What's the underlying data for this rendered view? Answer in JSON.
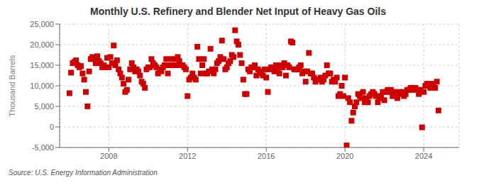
{
  "chart_data": {
    "type": "scatter",
    "title": "Monthly U.S. Refinery and Blender Net Input of Heavy Gas Oils",
    "ylabel": "Thousand Barrels",
    "annotations": [
      "Source: U.S. Energy Information Administration"
    ],
    "color": "#cc0000",
    "marker": "square",
    "grid": true,
    "xlim": [
      2005.5,
      2025.8
    ],
    "xticks": [
      2008,
      2012,
      2016,
      2020,
      2024
    ],
    "ylim": [
      -5000,
      25000
    ],
    "yticks": [
      {
        "value": -5000,
        "label": "-5,000"
      },
      0,
      {
        "value": 5000,
        "label": "5,000"
      },
      {
        "value": 10000,
        "label": "10,000"
      },
      {
        "value": 15000,
        "label": "15,000"
      },
      {
        "value": 20000,
        "label": "20,000"
      },
      {
        "value": 25000,
        "label": "25,000"
      }
    ],
    "x": [
      2006.0,
      2006.083,
      2006.167,
      2006.25,
      2006.333,
      2006.417,
      2006.5,
      2006.583,
      2006.667,
      2006.75,
      2006.833,
      2006.917,
      2007.0,
      2007.083,
      2007.167,
      2007.25,
      2007.333,
      2007.417,
      2007.5,
      2007.583,
      2007.667,
      2007.75,
      2007.833,
      2007.917,
      2008.0,
      2008.083,
      2008.167,
      2008.25,
      2008.333,
      2008.417,
      2008.5,
      2008.583,
      2008.667,
      2008.75,
      2008.833,
      2008.917,
      2009.0,
      2009.083,
      2009.167,
      2009.25,
      2009.333,
      2009.417,
      2009.5,
      2009.583,
      2009.667,
      2009.75,
      2009.833,
      2009.917,
      2010.0,
      2010.083,
      2010.167,
      2010.25,
      2010.333,
      2010.417,
      2010.5,
      2010.583,
      2010.667,
      2010.75,
      2010.833,
      2010.917,
      2011.0,
      2011.083,
      2011.167,
      2011.25,
      2011.333,
      2011.417,
      2011.5,
      2011.583,
      2011.667,
      2011.75,
      2011.833,
      2011.917,
      2012.0,
      2012.083,
      2012.167,
      2012.25,
      2012.333,
      2012.417,
      2012.5,
      2012.583,
      2012.667,
      2012.75,
      2012.833,
      2012.917,
      2013.0,
      2013.083,
      2013.167,
      2013.25,
      2013.333,
      2013.417,
      2013.5,
      2013.583,
      2013.667,
      2013.75,
      2013.833,
      2013.917,
      2014.0,
      2014.083,
      2014.167,
      2014.25,
      2014.333,
      2014.417,
      2014.5,
      2014.583,
      2014.667,
      2014.75,
      2014.833,
      2014.917,
      2015.0,
      2015.083,
      2015.167,
      2015.25,
      2015.333,
      2015.417,
      2015.5,
      2015.583,
      2015.667,
      2015.75,
      2015.833,
      2015.917,
      2016.0,
      2016.083,
      2016.167,
      2016.25,
      2016.333,
      2016.417,
      2016.5,
      2016.583,
      2016.667,
      2016.75,
      2016.833,
      2016.917,
      2017.0,
      2017.083,
      2017.167,
      2017.25,
      2017.333,
      2017.417,
      2017.5,
      2017.583,
      2017.667,
      2017.75,
      2017.833,
      2017.917,
      2018.0,
      2018.083,
      2018.167,
      2018.25,
      2018.333,
      2018.417,
      2018.5,
      2018.583,
      2018.667,
      2018.75,
      2018.833,
      2018.917,
      2019.0,
      2019.083,
      2019.167,
      2019.25,
      2019.333,
      2019.417,
      2019.5,
      2019.583,
      2019.667,
      2019.75,
      2019.833,
      2019.917,
      2020.0,
      2020.083,
      2020.167,
      2020.25,
      2020.333,
      2020.417,
      2020.5,
      2020.583,
      2020.667,
      2020.75,
      2020.833,
      2020.917,
      2021.0,
      2021.083,
      2021.167,
      2021.25,
      2021.333,
      2021.417,
      2021.5,
      2021.583,
      2021.667,
      2021.75,
      2021.833,
      2021.917,
      2022.0,
      2022.083,
      2022.167,
      2022.25,
      2022.333,
      2022.417,
      2022.5,
      2022.583,
      2022.667,
      2022.75,
      2022.833,
      2022.917,
      2023.0,
      2023.083,
      2023.167,
      2023.25,
      2023.333,
      2023.417,
      2023.5,
      2023.583,
      2023.667,
      2023.75,
      2023.833,
      2023.917,
      2024.0,
      2024.083,
      2024.167,
      2024.25,
      2024.333,
      2024.417,
      2024.5,
      2024.583,
      2024.667,
      2024.75
    ],
    "values": [
      8200,
      13200,
      15500,
      15800,
      16200,
      15000,
      14500,
      14800,
      13000,
      11500,
      8500,
      5000,
      13500,
      16500,
      17000,
      16800,
      15500,
      17200,
      16000,
      15500,
      14500,
      15000,
      14500,
      16800,
      14500,
      17000,
      15500,
      19800,
      15000,
      16200,
      14000,
      13000,
      12000,
      10500,
      8500,
      9000,
      11500,
      14000,
      15500,
      14500,
      13500,
      14000,
      13500,
      12500,
      11000,
      10500,
      9500,
      14000,
      14500,
      14500,
      16500,
      15500,
      15000,
      14500,
      13000,
      14000,
      13500,
      14500,
      15000,
      16500,
      13000,
      15000,
      16500,
      15000,
      16500,
      15000,
      17000,
      16000,
      15000,
      15000,
      14500,
      14000,
      7500,
      11500,
      12000,
      13000,
      12000,
      11500,
      19500,
      16500,
      13000,
      15000,
      16500,
      13000,
      13000,
      13500,
      19000,
      14000,
      13000,
      14000,
      15500,
      16000,
      17000,
      21000,
      16500,
      14000,
      14500,
      15500,
      16000,
      17500,
      17000,
      23500,
      20800,
      20000,
      17500,
      15500,
      11500,
      8000,
      8000,
      14000,
      13500,
      14500,
      14500,
      15000,
      12500,
      14000,
      13500,
      13000,
      12500,
      14000,
      12000,
      8500,
      14000,
      14500,
      14000,
      13500,
      15000,
      14000,
      13000,
      15000,
      14500,
      15500,
      12500,
      15000,
      14500,
      20800,
      20500,
      14000,
      14000,
      14000,
      14500,
      15000,
      13000,
      13500,
      11000,
      13500,
      18000,
      13000,
      13000,
      12000,
      11000,
      11500,
      11500,
      12000,
      11000,
      11500,
      12500,
      15000,
      13000,
      13000,
      11000,
      11500,
      11000,
      12000,
      7500,
      8000,
      10000,
      7500,
      12000,
      -4500,
      7000,
      6000,
      1500,
      3500,
      5000,
      6000,
      8000,
      7500,
      7000,
      8500,
      6000,
      7000,
      6000,
      7500,
      8000,
      8500,
      8000,
      7500,
      6000,
      7000,
      7500,
      8500,
      6500,
      8500,
      9000,
      8500,
      9000,
      7500,
      8500,
      8000,
      7000,
      8500,
      8000,
      8500,
      7500,
      8000,
      9000,
      9000,
      9500,
      9500,
      9000,
      9500,
      9000,
      8000,
      9000,
      -100,
      8500,
      10000,
      10500,
      10000,
      9500,
      10500,
      10000,
      9500,
      11000,
      4000
    ]
  }
}
